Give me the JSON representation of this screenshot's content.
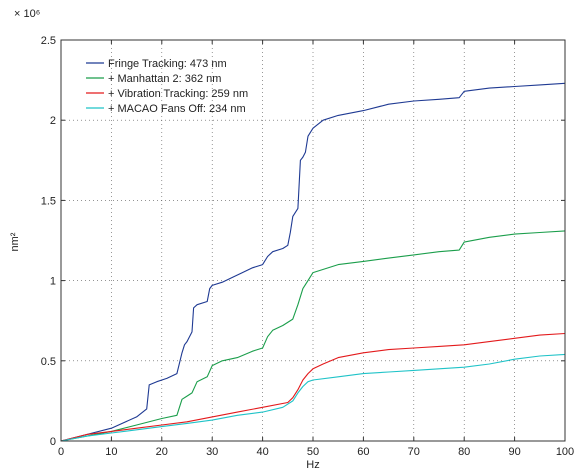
{
  "chart_data": {
    "type": "line",
    "xlabel": "Hz",
    "ylabel": "nm²",
    "scale_label": "× 10⁶",
    "xlim": [
      0,
      100
    ],
    "ylim": [
      0,
      2.5
    ],
    "xticks": [
      "0",
      "10",
      "20",
      "30",
      "40",
      "50",
      "60",
      "70",
      "80",
      "90",
      "100"
    ],
    "yticks": [
      "0",
      "0.5",
      "1",
      "1.5",
      "2",
      "2.5"
    ],
    "grid": true,
    "legend_position": "top-left",
    "series": [
      {
        "name": "Fringe Tracking: 473 nm",
        "color": "#1f3a93",
        "x": [
          0,
          5,
          10,
          15,
          17,
          17.5,
          19,
          21,
          23,
          24,
          24.5,
          25,
          26,
          26.3,
          27,
          29,
          29.5,
          30,
          32,
          34,
          36,
          38,
          40,
          41,
          42,
          44,
          45,
          45.5,
          46,
          47,
          47.5,
          48,
          48.5,
          49,
          50,
          52,
          55,
          60,
          65,
          70,
          75,
          79,
          80,
          85,
          90,
          95,
          100
        ],
        "y": [
          0,
          0.04,
          0.08,
          0.15,
          0.2,
          0.35,
          0.37,
          0.39,
          0.42,
          0.55,
          0.6,
          0.62,
          0.68,
          0.83,
          0.85,
          0.87,
          0.95,
          0.97,
          0.99,
          1.02,
          1.05,
          1.08,
          1.1,
          1.15,
          1.18,
          1.2,
          1.22,
          1.3,
          1.4,
          1.45,
          1.75,
          1.77,
          1.8,
          1.9,
          1.95,
          2.0,
          2.03,
          2.06,
          2.1,
          2.12,
          2.13,
          2.14,
          2.18,
          2.2,
          2.21,
          2.22,
          2.23
        ]
      },
      {
        "name": "+ Manhattan 2: 362 nm",
        "color": "#1b9e4b",
        "x": [
          0,
          5,
          10,
          15,
          20,
          23,
          24,
          25,
          26,
          27,
          29,
          30,
          32,
          35,
          38,
          40,
          41,
          42,
          44,
          46,
          47,
          48,
          49,
          50,
          55,
          60,
          65,
          70,
          75,
          79,
          80,
          85,
          90,
          95,
          100
        ],
        "y": [
          0,
          0.03,
          0.06,
          0.1,
          0.14,
          0.16,
          0.26,
          0.28,
          0.3,
          0.37,
          0.4,
          0.47,
          0.5,
          0.52,
          0.56,
          0.58,
          0.65,
          0.69,
          0.72,
          0.76,
          0.85,
          0.95,
          1.0,
          1.05,
          1.1,
          1.12,
          1.14,
          1.16,
          1.18,
          1.19,
          1.24,
          1.27,
          1.29,
          1.3,
          1.31
        ]
      },
      {
        "name": "+ Vibration Tracking: 259 nm",
        "color": "#e31a1c",
        "x": [
          0,
          5,
          10,
          15,
          20,
          25,
          30,
          35,
          40,
          45,
          46,
          47,
          48,
          49,
          50,
          52,
          55,
          60,
          65,
          70,
          75,
          80,
          85,
          90,
          95,
          100
        ],
        "y": [
          0,
          0.04,
          0.06,
          0.08,
          0.1,
          0.12,
          0.15,
          0.18,
          0.21,
          0.24,
          0.27,
          0.32,
          0.38,
          0.42,
          0.45,
          0.48,
          0.52,
          0.55,
          0.57,
          0.58,
          0.59,
          0.6,
          0.62,
          0.64,
          0.66,
          0.67
        ]
      },
      {
        "name": "+ MACAO Fans Off: 234 nm",
        "color": "#1fc3c8",
        "x": [
          0,
          5,
          10,
          15,
          20,
          25,
          30,
          35,
          40,
          44,
          46,
          47,
          48,
          49,
          50,
          55,
          60,
          65,
          70,
          75,
          80,
          85,
          90,
          95,
          100
        ],
        "y": [
          0,
          0.03,
          0.05,
          0.07,
          0.09,
          0.11,
          0.13,
          0.16,
          0.18,
          0.21,
          0.25,
          0.3,
          0.34,
          0.37,
          0.38,
          0.4,
          0.42,
          0.43,
          0.44,
          0.45,
          0.46,
          0.48,
          0.51,
          0.53,
          0.54
        ]
      }
    ]
  }
}
